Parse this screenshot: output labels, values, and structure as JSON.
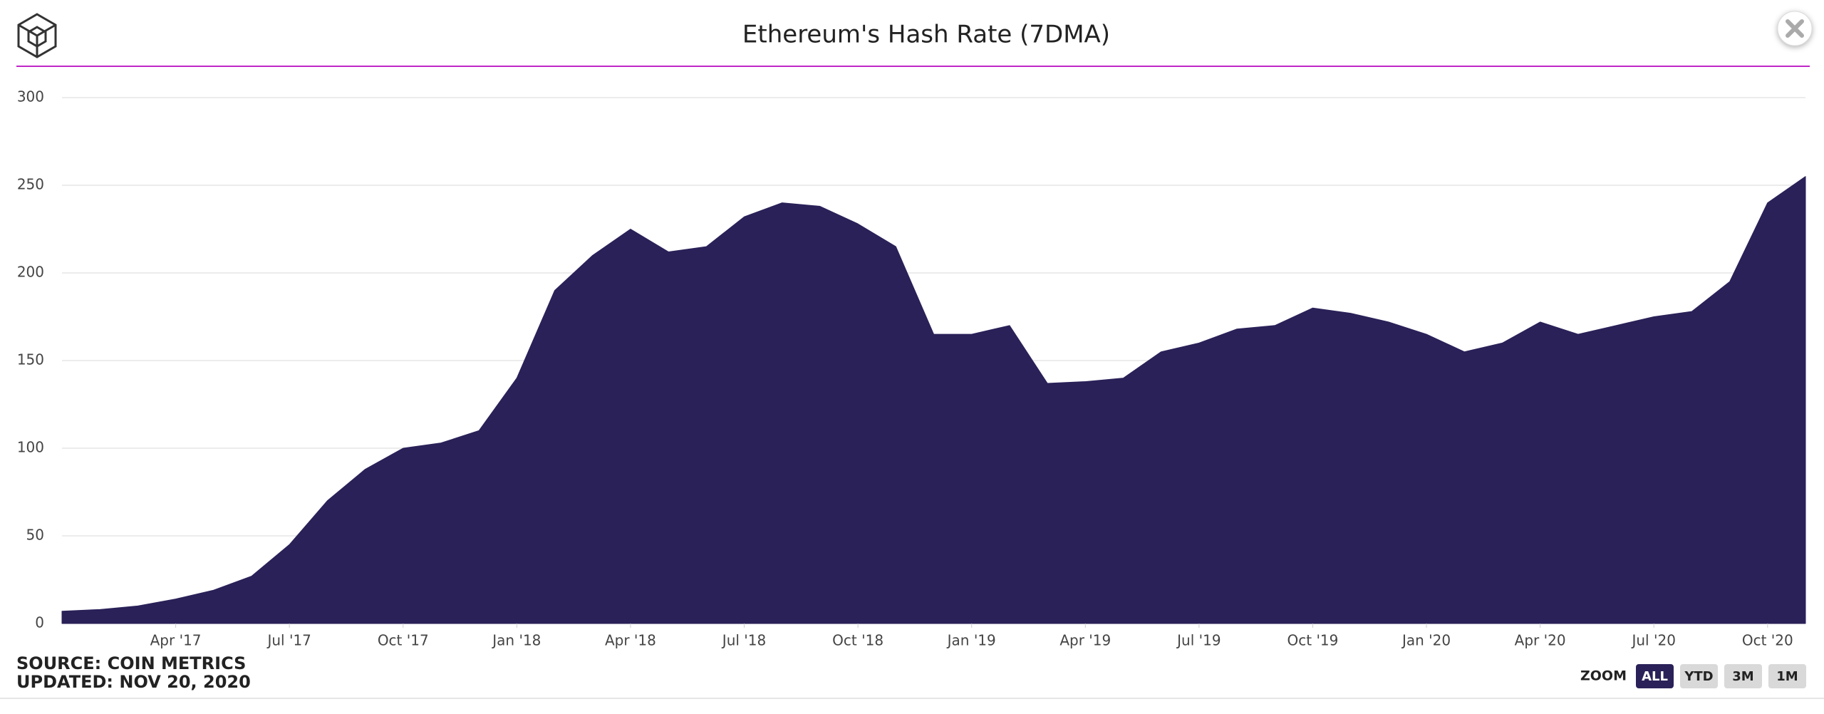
{
  "chart_data": {
    "type": "area",
    "title": "Ethereum's Hash Rate (7DMA)",
    "source": "SOURCE: COIN METRICS",
    "updated": "UPDATED: NOV 20, 2020",
    "zoom_label": "ZOOM",
    "zoom_buttons": [
      "ALL",
      "YTD",
      "3M",
      "1M"
    ],
    "active_zoom": "ALL",
    "x": [
      "2017-01",
      "2017-02",
      "2017-03",
      "2017-04",
      "2017-05",
      "2017-06",
      "2017-07",
      "2017-08",
      "2017-09",
      "2017-10",
      "2017-11",
      "2017-12",
      "2018-01",
      "2018-02",
      "2018-03",
      "2018-04",
      "2018-05",
      "2018-06",
      "2018-07",
      "2018-08",
      "2018-09",
      "2018-10",
      "2018-11",
      "2018-12",
      "2019-01",
      "2019-02",
      "2019-03",
      "2019-04",
      "2019-05",
      "2019-06",
      "2019-07",
      "2019-08",
      "2019-09",
      "2019-10",
      "2019-11",
      "2019-12",
      "2020-01",
      "2020-02",
      "2020-03",
      "2020-04",
      "2020-05",
      "2020-06",
      "2020-07",
      "2020-08",
      "2020-09",
      "2020-10",
      "2020-11"
    ],
    "series": [
      {
        "name": "Hash Rate",
        "color": "#2a2158",
        "values": [
          7,
          8,
          10,
          14,
          19,
          27,
          45,
          70,
          88,
          100,
          103,
          110,
          140,
          190,
          210,
          225,
          212,
          215,
          232,
          240,
          238,
          228,
          215,
          165,
          165,
          170,
          137,
          138,
          140,
          155,
          160,
          168,
          170,
          180,
          177,
          172,
          165,
          155,
          160,
          172,
          165,
          170,
          175,
          178,
          195,
          240,
          255
        ]
      }
    ],
    "xlim": [
      "2017-01",
      "2020-11"
    ],
    "xticks": [
      {
        "value": "2017-04",
        "label": "Apr '17"
      },
      {
        "value": "2017-07",
        "label": "Jul '17"
      },
      {
        "value": "2017-10",
        "label": "Oct '17"
      },
      {
        "value": "2018-01",
        "label": "Jan '18"
      },
      {
        "value": "2018-04",
        "label": "Apr '18"
      },
      {
        "value": "2018-07",
        "label": "Jul '18"
      },
      {
        "value": "2018-10",
        "label": "Oct '18"
      },
      {
        "value": "2019-01",
        "label": "Jan '19"
      },
      {
        "value": "2019-04",
        "label": "Apr '19"
      },
      {
        "value": "2019-07",
        "label": "Jul '19"
      },
      {
        "value": "2019-10",
        "label": "Oct '19"
      },
      {
        "value": "2020-01",
        "label": "Jan '20"
      },
      {
        "value": "2020-04",
        "label": "Apr '20"
      },
      {
        "value": "2020-07",
        "label": "Jul '20"
      },
      {
        "value": "2020-10",
        "label": "Oct '20"
      }
    ],
    "ylim": [
      0,
      300
    ],
    "yticks": [
      0,
      50,
      100,
      150,
      200,
      250,
      300
    ],
    "grid": true
  }
}
